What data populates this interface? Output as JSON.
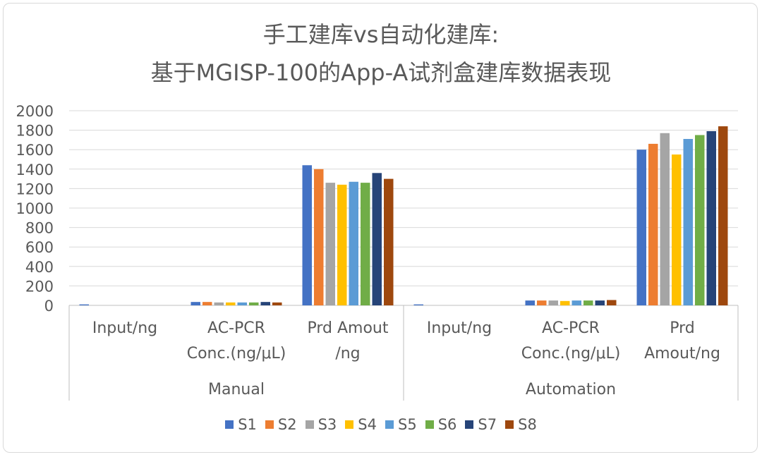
{
  "chart_data": {
    "type": "bar",
    "title": [
      "手工建库vs自动化建库:",
      "基于MGISP-100的App-A试剂盒建库数据表现"
    ],
    "xlabel": "",
    "ylabel": "",
    "ylim": [
      0,
      2000
    ],
    "yticks": [
      "0",
      "200",
      "400",
      "600",
      "800",
      "1000",
      "1200",
      "1400",
      "1600",
      "1800",
      "2000"
    ],
    "grid": true,
    "legend_position": "bottom",
    "groups": [
      {
        "name": "Manual",
        "categories": [
          [
            "Input/ng"
          ],
          [
            "AC-PCR",
            "Conc.(ng/μL)"
          ],
          [
            "Prd Amout",
            "/ng"
          ]
        ]
      },
      {
        "name": "Automation",
        "categories": [
          [
            "Input/ng"
          ],
          [
            "AC-PCR",
            "Conc.(ng/μL)"
          ],
          [
            "Prd",
            "Amout/ng"
          ]
        ]
      }
    ],
    "series": [
      {
        "name": "S1",
        "color": "#4472C4",
        "values": [
          10,
          35,
          1440,
          10,
          50,
          1600
        ]
      },
      {
        "name": "S2",
        "color": "#ED7D31",
        "values": [
          0,
          35,
          1400,
          0,
          50,
          1660
        ]
      },
      {
        "name": "S3",
        "color": "#A5A5A5",
        "values": [
          0,
          30,
          1260,
          0,
          50,
          1770
        ]
      },
      {
        "name": "S4",
        "color": "#FFC000",
        "values": [
          0,
          30,
          1240,
          0,
          45,
          1550
        ]
      },
      {
        "name": "S5",
        "color": "#5B9BD5",
        "values": [
          0,
          30,
          1270,
          0,
          50,
          1710
        ]
      },
      {
        "name": "S6",
        "color": "#70AD47",
        "values": [
          0,
          30,
          1260,
          0,
          50,
          1750
        ]
      },
      {
        "name": "S7",
        "color": "#264478",
        "values": [
          0,
          35,
          1360,
          0,
          50,
          1790
        ]
      },
      {
        "name": "S8",
        "color": "#9E480E",
        "values": [
          0,
          30,
          1300,
          0,
          55,
          1840
        ]
      }
    ]
  }
}
